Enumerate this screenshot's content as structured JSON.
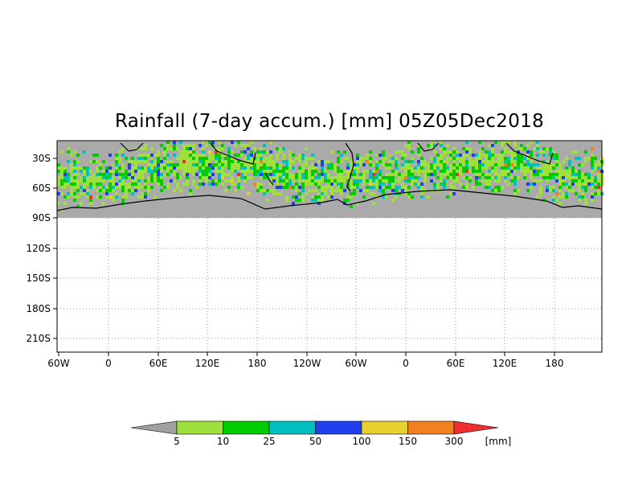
{
  "title": "Rainfall (7-day accum.) [mm] 05Z05Dec2018",
  "map": {
    "y_tick_labels": [
      "30S",
      "60S",
      "90S",
      "120S",
      "150S",
      "180S",
      "210S"
    ],
    "x_tick_labels": [
      "60W",
      "0",
      "60E",
      "120E",
      "180",
      "120W",
      "60W",
      "0",
      "60E",
      "120E",
      "180"
    ],
    "land_color": "#aaaaaa",
    "grid": "dotted"
  },
  "colorbar": {
    "labels": [
      "5",
      "10",
      "25",
      "50",
      "100",
      "150",
      "300"
    ],
    "unit": "[mm]",
    "colors": [
      "#a0a0a0",
      "#9fe03c",
      "#00cc00",
      "#00c0c0",
      "#2040f0",
      "#e8d030",
      "#f08020",
      "#f03030"
    ]
  }
}
